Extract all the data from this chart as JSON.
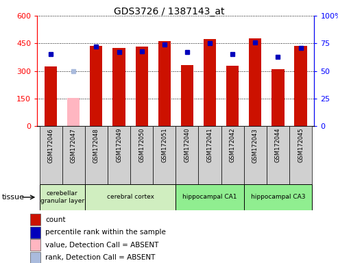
{
  "title": "GDS3726 / 1387143_at",
  "samples": [
    "GSM172046",
    "GSM172047",
    "GSM172048",
    "GSM172049",
    "GSM172050",
    "GSM172051",
    "GSM172040",
    "GSM172041",
    "GSM172042",
    "GSM172043",
    "GSM172044",
    "GSM172045"
  ],
  "count_values": [
    325,
    0,
    435,
    427,
    432,
    463,
    333,
    472,
    328,
    478,
    310,
    438
  ],
  "count_absent": [
    0,
    155,
    0,
    0,
    0,
    0,
    0,
    0,
    0,
    0,
    0,
    0
  ],
  "rank_values": [
    65,
    0,
    72,
    67,
    68,
    74,
    67,
    75,
    65,
    76,
    63,
    71
  ],
  "rank_absent": [
    0,
    50,
    0,
    0,
    0,
    0,
    0,
    0,
    0,
    0,
    0,
    0
  ],
  "absent_flags": [
    false,
    true,
    false,
    false,
    false,
    false,
    false,
    false,
    false,
    false,
    false,
    false
  ],
  "group_boundaries": [
    {
      "start": 0,
      "end": 2,
      "label": "cerebellar\ngranular layer",
      "color": "#d0eec0"
    },
    {
      "start": 2,
      "end": 6,
      "label": "cerebral cortex",
      "color": "#d0eec0"
    },
    {
      "start": 6,
      "end": 9,
      "label": "hippocampal CA1",
      "color": "#90ee90"
    },
    {
      "start": 9,
      "end": 12,
      "label": "hippocampal CA3",
      "color": "#90ee90"
    }
  ],
  "ylim_left": [
    0,
    600
  ],
  "ylim_right": [
    0,
    100
  ],
  "yticks_left": [
    0,
    150,
    300,
    450,
    600
  ],
  "yticks_right": [
    0,
    25,
    50,
    75,
    100
  ],
  "bar_color_present": "#cc1100",
  "bar_color_absent": "#ffb6c1",
  "rank_color_present": "#0000bb",
  "rank_color_absent": "#aabbdd",
  "bar_width": 0.55,
  "tissue_label": "tissue",
  "legend_items": [
    {
      "label": "count",
      "color": "#cc1100"
    },
    {
      "label": "percentile rank within the sample",
      "color": "#0000bb"
    },
    {
      "label": "value, Detection Call = ABSENT",
      "color": "#ffb6c1"
    },
    {
      "label": "rank, Detection Call = ABSENT",
      "color": "#aabbdd"
    }
  ]
}
